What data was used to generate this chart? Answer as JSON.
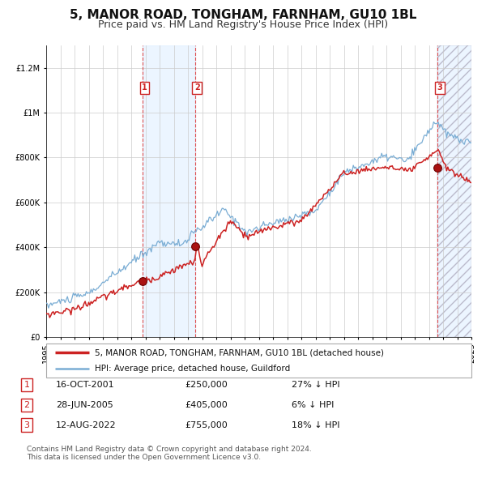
{
  "title": "5, MANOR ROAD, TONGHAM, FARNHAM, GU10 1BL",
  "subtitle": "Price paid vs. HM Land Registry's House Price Index (HPI)",
  "ylim": [
    0,
    1300000
  ],
  "yticks": [
    0,
    200000,
    400000,
    600000,
    800000,
    1000000,
    1200000
  ],
  "ytick_labels": [
    "£0",
    "£200K",
    "£400K",
    "£600K",
    "£800K",
    "£1M",
    "£1.2M"
  ],
  "year_start": 1995,
  "year_end": 2025,
  "hpi_color": "#7aadd4",
  "price_color": "#cc2222",
  "sale_ts": [
    2001.789,
    2005.493,
    2022.618
  ],
  "sale_prices": [
    250000,
    405000,
    755000
  ],
  "sale_labels": [
    "1",
    "2",
    "3"
  ],
  "legend_price_label": "5, MANOR ROAD, TONGHAM, FARNHAM, GU10 1BL (detached house)",
  "legend_hpi_label": "HPI: Average price, detached house, Guildford",
  "table_data": [
    [
      "1",
      "16-OCT-2001",
      "£250,000",
      "27% ↓ HPI"
    ],
    [
      "2",
      "28-JUN-2005",
      "£405,000",
      "6% ↓ HPI"
    ],
    [
      "3",
      "12-AUG-2022",
      "£755,000",
      "18% ↓ HPI"
    ]
  ],
  "footnote": "Contains HM Land Registry data © Crown copyright and database right 2024.\nThis data is licensed under the Open Government Licence v3.0.",
  "background_color": "#ffffff",
  "grid_color": "#cccccc",
  "title_fontsize": 11,
  "subtitle_fontsize": 9,
  "tick_fontsize": 7,
  "shade_color": "#ddeeff",
  "hatch_color": "#ccccdd"
}
